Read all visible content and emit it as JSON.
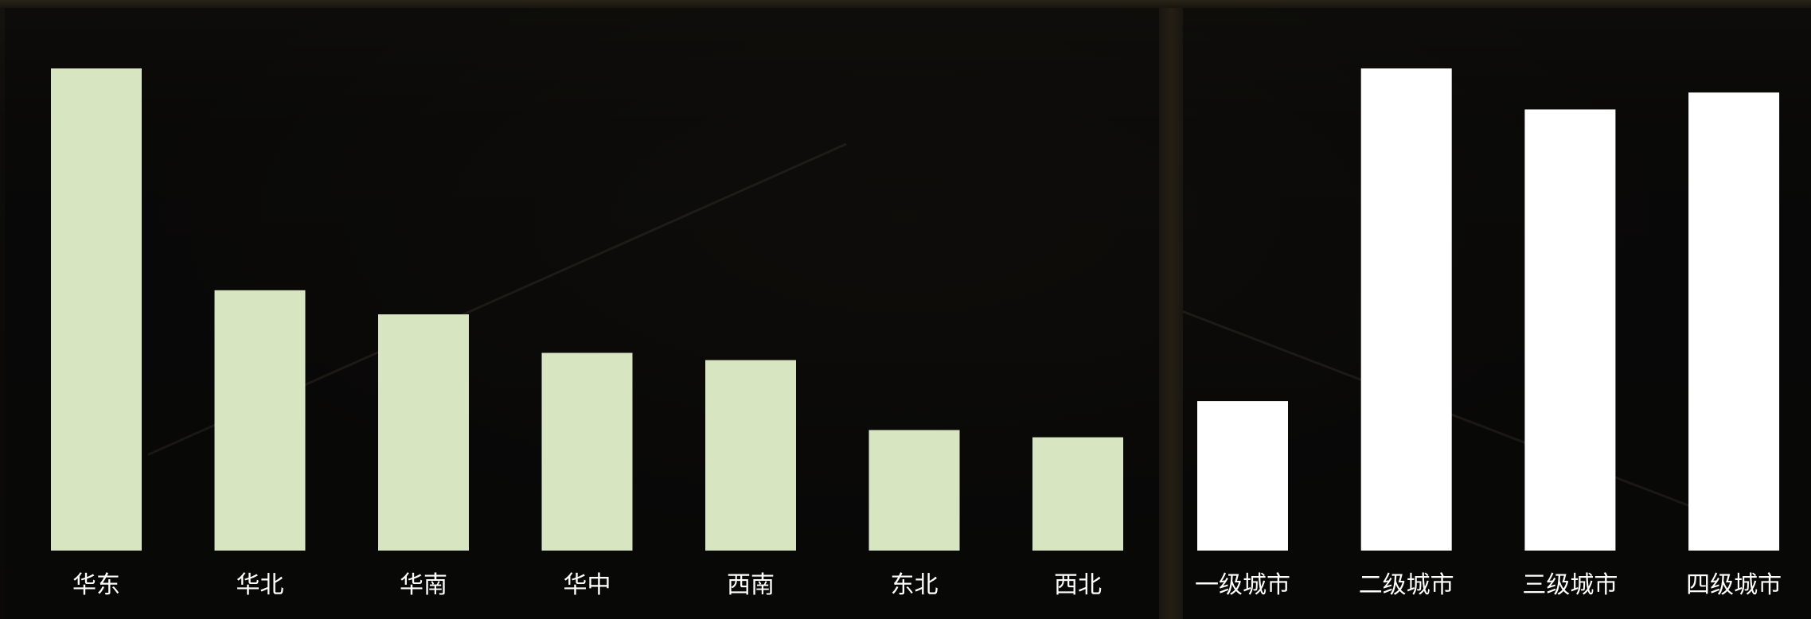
{
  "chart_data": [
    {
      "type": "bar",
      "categories": [
        "华东",
        "华北",
        "华南",
        "华中",
        "西南",
        "东北",
        "西北"
      ],
      "values": [
        100,
        54,
        49,
        41,
        39.5,
        25,
        23.5
      ],
      "bar_color": "#d8e5c1",
      "title": "",
      "xlabel": "",
      "ylabel": "",
      "ylim": [
        0,
        100
      ],
      "grid": false
    },
    {
      "type": "bar",
      "categories": [
        "一级城市",
        "二级城市",
        "三级城市",
        "四级城市"
      ],
      "values": [
        31,
        100,
        91.5,
        95
      ],
      "bar_color": "#ffffff",
      "title": "",
      "xlabel": "",
      "ylabel": "",
      "ylim": [
        0,
        100
      ],
      "grid": false
    }
  ]
}
